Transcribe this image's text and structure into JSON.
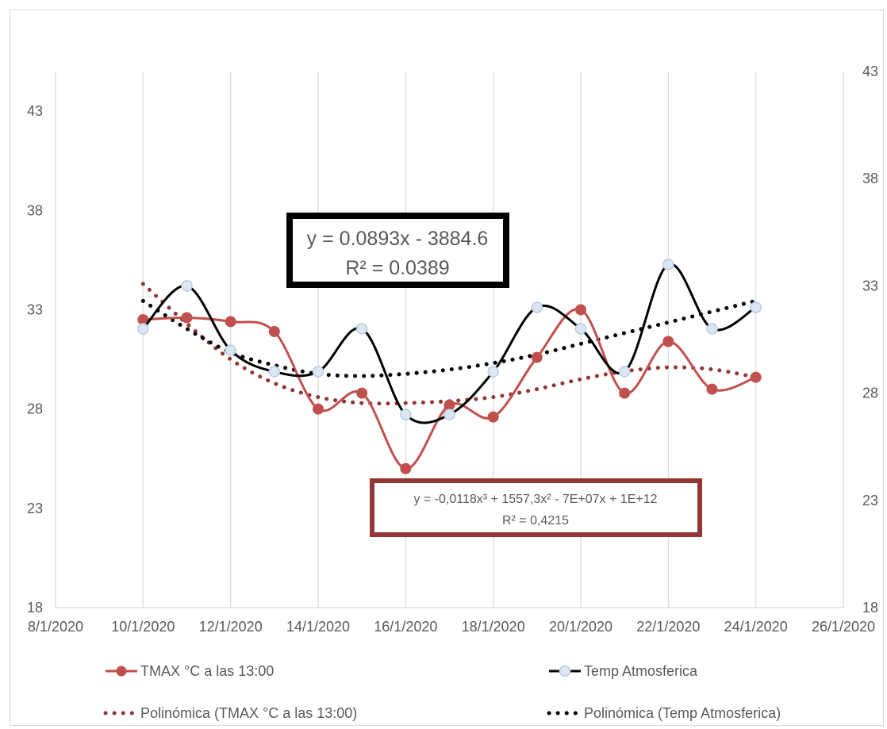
{
  "chart_data": {
    "type": "line",
    "title": "",
    "x_type": "date",
    "x_tick_labels": [
      "8/1/2020",
      "10/1/2020",
      "12/1/2020",
      "14/1/2020",
      "16/1/2020",
      "18/1/2020",
      "20/1/2020",
      "22/1/2020",
      "24/1/2020",
      "26/1/2020"
    ],
    "xlim": [
      "2020-01-08",
      "2020-01-26"
    ],
    "y_left": {
      "ylim": [
        18,
        45
      ],
      "tick_labels": [
        "18",
        "23",
        "28",
        "33",
        "38",
        "43"
      ]
    },
    "y_right": {
      "ylim": [
        18,
        43
      ],
      "tick_labels": [
        "18",
        "23",
        "28",
        "33",
        "38",
        "43"
      ]
    },
    "grid": "vertical",
    "legend_position": "bottom",
    "series": [
      {
        "name": "TMAX °C a las 13:00",
        "axis": "left",
        "color": "#c0504d",
        "marker": "circle",
        "dates": [
          "2020-01-10",
          "2020-01-11",
          "2020-01-12",
          "2020-01-13",
          "2020-01-14",
          "2020-01-15",
          "2020-01-16",
          "2020-01-17",
          "2020-01-18",
          "2020-01-19",
          "2020-01-20",
          "2020-01-21",
          "2020-01-22",
          "2020-01-23",
          "2020-01-24"
        ],
        "values": [
          32.5,
          32.6,
          32.4,
          31.9,
          28.0,
          28.8,
          25.0,
          28.2,
          27.6,
          30.6,
          33.0,
          28.8,
          31.4,
          29.0,
          29.6
        ]
      },
      {
        "name": "Temp Atmosferica",
        "axis": "right",
        "color": "#000000",
        "marker": "circle-light",
        "dates": [
          "2020-01-10",
          "2020-01-11",
          "2020-01-12",
          "2020-01-13",
          "2020-01-14",
          "2020-01-15",
          "2020-01-16",
          "2020-01-17",
          "2020-01-18",
          "2020-01-19",
          "2020-01-20",
          "2020-01-21",
          "2020-01-22",
          "2020-01-23",
          "2020-01-24"
        ],
        "values": [
          31,
          33,
          30,
          29,
          29,
          31,
          27,
          27,
          29,
          32,
          31,
          29,
          34,
          31,
          32
        ]
      }
    ],
    "trendlines": [
      {
        "name": "Polinómica (TMAX °C a las 13:00)",
        "axis": "left",
        "color": "#943634",
        "style": "dotted",
        "dates": [
          "2020-01-10",
          "2020-01-11",
          "2020-01-12",
          "2020-01-13",
          "2020-01-14",
          "2020-01-15",
          "2020-01-16",
          "2020-01-17",
          "2020-01-18",
          "2020-01-19",
          "2020-01-20",
          "2020-01-21",
          "2020-01-22",
          "2020-01-23",
          "2020-01-24"
        ],
        "values": [
          34.3,
          32.3,
          30.5,
          29.3,
          28.6,
          28.3,
          28.3,
          28.4,
          28.6,
          29.0,
          29.5,
          29.9,
          30.1,
          30.0,
          29.6
        ]
      },
      {
        "name": "Polinómica (Temp Atmosferica)",
        "axis": "right",
        "color": "#000000",
        "style": "dotted",
        "dates": [
          "2020-01-10",
          "2020-01-11",
          "2020-01-12",
          "2020-01-13",
          "2020-01-14",
          "2020-01-15",
          "2020-01-16",
          "2020-01-17",
          "2020-01-18",
          "2020-01-19",
          "2020-01-20",
          "2020-01-21",
          "2020-01-22",
          "2020-01-23",
          "2020-01-24"
        ],
        "values": [
          32.3,
          31.0,
          29.9,
          29.3,
          28.9,
          28.8,
          28.9,
          29.1,
          29.4,
          29.8,
          30.3,
          30.8,
          31.3,
          31.8,
          32.3
        ]
      }
    ],
    "annotations": [
      {
        "lines": [
          "y = 0.0893x - 3884.6",
          "R² = 0.0389"
        ],
        "border_color": "#000000"
      },
      {
        "lines": [
          "y = -0,0118x³ + 1557,3x² - 7E+07x + 1E+12",
          "R² = 0,4215"
        ],
        "border_color": "#943634"
      }
    ]
  },
  "legend": {
    "items": [
      {
        "label": "TMAX °C a las 13:00"
      },
      {
        "label": "Temp Atmosferica"
      },
      {
        "label": "Polinómica (TMAX °C a las 13:00)"
      },
      {
        "label": "Polinómica (Temp Atmosferica)"
      }
    ]
  }
}
